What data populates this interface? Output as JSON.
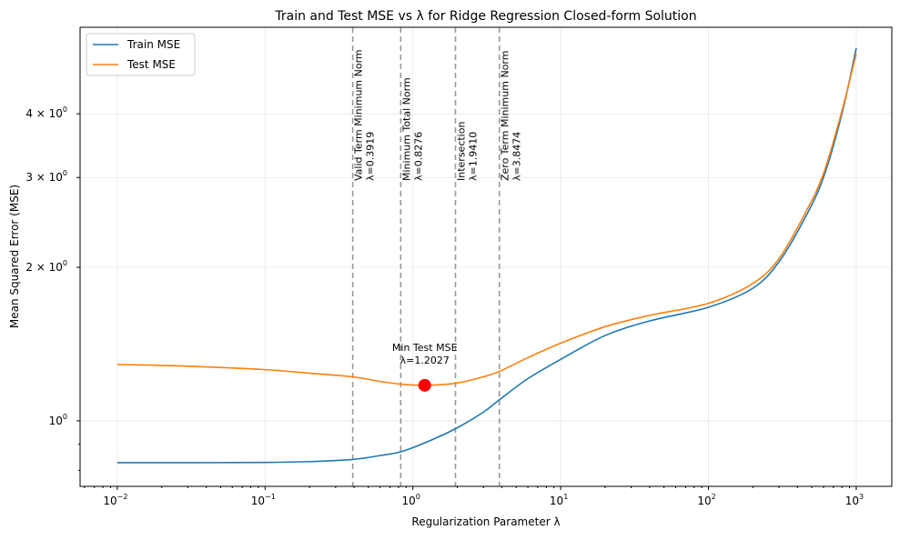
{
  "chart_data": {
    "type": "line",
    "title": "Train and Test MSE vs λ for Ridge Regression Closed-form Solution",
    "xlabel": "Regularization Parameter λ",
    "ylabel": "Mean Squared Error (MSE)",
    "xscale": "log",
    "yscale": "log",
    "xlim": [
      0.0056,
      1740
    ],
    "ylim": [
      0.744,
      5.91
    ],
    "grid": true,
    "legend": "top-left",
    "x_ticks": [
      {
        "value": 0.01,
        "base": "10",
        "exp": "−2"
      },
      {
        "value": 0.1,
        "base": "10",
        "exp": "−1"
      },
      {
        "value": 1,
        "base": "10",
        "exp": "0"
      },
      {
        "value": 10,
        "base": "10",
        "exp": "1"
      },
      {
        "value": 100,
        "base": "10",
        "exp": "2"
      },
      {
        "value": 1000,
        "base": "10",
        "exp": "3"
      }
    ],
    "y_ticks": [
      {
        "value": 1,
        "base": "10",
        "exp": "0"
      },
      {
        "value": 2,
        "base": "2 × 10",
        "exp": "0"
      },
      {
        "value": 3,
        "base": "3 × 10",
        "exp": "0"
      },
      {
        "value": 4,
        "base": "4 × 10",
        "exp": "0"
      }
    ],
    "x": [
      0.01,
      0.03,
      0.1,
      0.2,
      0.39,
      0.6,
      0.83,
      1.2,
      1.94,
      3,
      3.85,
      6,
      10,
      20,
      40,
      100,
      200,
      300,
      450,
      600,
      800,
      1000
    ],
    "series": [
      {
        "name": "Train MSE",
        "color": "#1f77b4",
        "values": [
          0.828,
          0.828,
          0.829,
          0.832,
          0.84,
          0.855,
          0.87,
          0.905,
          0.965,
          1.04,
          1.1,
          1.21,
          1.32,
          1.47,
          1.57,
          1.67,
          1.82,
          2.05,
          2.5,
          3.0,
          4.0,
          5.38
        ]
      },
      {
        "name": "Test MSE",
        "color": "#ff7f0e",
        "values": [
          1.29,
          1.28,
          1.26,
          1.24,
          1.22,
          1.195,
          1.18,
          1.174,
          1.185,
          1.22,
          1.25,
          1.33,
          1.42,
          1.53,
          1.61,
          1.7,
          1.86,
          2.08,
          2.55,
          3.05,
          4.05,
          5.25
        ]
      }
    ],
    "vlines": [
      {
        "x": 0.3919,
        "label": "Valid Term Minimum Norm",
        "value_label": "λ=0.3919"
      },
      {
        "x": 0.8276,
        "label": "Minimum Total Norm",
        "value_label": "λ=0.8276"
      },
      {
        "x": 1.941,
        "label": "Intersection",
        "value_label": "λ=1.9410"
      },
      {
        "x": 3.8474,
        "label": "Zero Term Minimum Norm",
        "value_label": "λ=3.8474"
      }
    ],
    "marker": {
      "x": 1.2027,
      "y": 1.174,
      "color": "#ff0000",
      "label": "Min Test MSE",
      "value_label": "λ=1.2027"
    }
  }
}
